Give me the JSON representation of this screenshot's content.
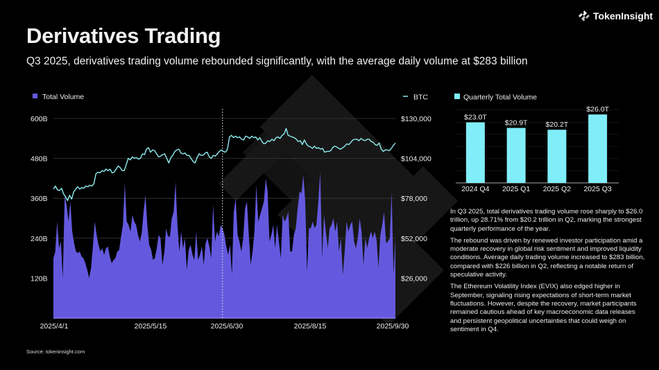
{
  "header": {
    "title": "Derivatives Trading",
    "subtitle": "Q3 2025, derivatives trading volume rebounded significantly, with the average daily volume at $283 billion",
    "logo_text": "TokenInsight"
  },
  "colors": {
    "volume": "#6459DE",
    "btc": "#8EEEF2",
    "quarterly": "#80EEF8",
    "grid": "#3a3a3a",
    "background": "#000000"
  },
  "chart_data": [
    {
      "type": "area",
      "title": "",
      "legend": [
        {
          "name": "Total Volume",
          "marker": "square",
          "position": "top-left"
        },
        {
          "name": "BTC",
          "marker": "line",
          "position": "top-right"
        }
      ],
      "x_tick_labels": [
        "2025/4/1",
        "2025/5/15",
        "2025/6/30",
        "2025/8/15",
        "2025/9/30"
      ],
      "x_range": [
        "2025/4/1",
        "2025/9/30"
      ],
      "marker_line": "2025/6/30",
      "y_left": {
        "label": "",
        "ticks": [
          "120B",
          "240B",
          "360B",
          "480B",
          "600B"
        ],
        "range": [
          0,
          600
        ]
      },
      "y_right": {
        "label": "",
        "ticks": [
          "$26,000",
          "$52,000",
          "$78,000",
          "$104,000",
          "$130,000"
        ],
        "range": [
          0,
          130000
        ]
      },
      "grid": true,
      "series": [
        {
          "name": "Total Volume",
          "axis": "left",
          "unit": "B",
          "values": [
            180,
            200,
            290,
            210,
            230,
            120,
            370,
            340,
            290,
            350,
            260,
            225,
            200,
            195,
            200,
            185,
            180,
            165,
            145,
            120,
            150,
            215,
            290,
            250,
            220,
            200,
            210,
            190,
            210,
            215,
            185,
            165,
            175,
            180,
            200,
            205,
            245,
            280,
            405,
            290,
            280,
            260,
            310,
            290,
            280,
            250,
            230,
            255,
            320,
            370,
            280,
            220,
            205,
            175,
            180,
            210,
            250,
            240,
            160,
            195,
            270,
            245,
            245,
            300,
            320,
            410,
            280,
            200,
            260,
            210,
            240,
            145,
            205,
            220,
            190,
            175,
            260,
            175,
            190,
            215,
            160,
            225,
            240,
            215,
            180,
            340,
            230,
            260,
            245,
            280,
            270,
            250,
            215,
            190,
            220,
            130,
            320,
            360,
            250,
            230,
            200,
            240,
            330,
            350,
            250,
            160,
            200,
            260,
            400,
            290,
            310,
            330,
            350,
            420,
            380,
            230,
            250,
            280,
            210,
            280,
            230,
            180,
            310,
            290,
            300,
            320,
            200,
            200,
            250,
            270,
            330,
            380,
            375,
            430,
            350,
            140,
            270,
            270,
            290,
            270,
            280,
            350,
            440,
            180,
            310,
            260,
            210,
            270,
            280,
            300,
            260,
            290,
            200,
            240,
            130,
            200,
            290,
            260,
            280,
            290,
            230,
            210,
            240,
            300,
            260,
            160,
            240,
            210,
            240,
            260,
            240,
            260,
            235,
            150,
            250,
            280,
            320,
            225,
            230,
            240,
            380,
            130,
            240
          ],
          "stats": {
            "average_daily_q3": "$283 billion",
            "average_daily_q2": "$226 billion"
          }
        },
        {
          "name": "BTC",
          "axis": "right",
          "unit": "USD",
          "values": [
            84000,
            86000,
            83500,
            83000,
            84500,
            81000,
            79000,
            76500,
            80000,
            77500,
            82000,
            84000,
            85500,
            84000,
            85000,
            84500,
            86000,
            85500,
            86500,
            86000,
            87500,
            94000,
            95000,
            94500,
            96000,
            95500,
            97000,
            96000,
            97000,
            94500,
            95000,
            97000,
            99000,
            98000,
            96000,
            96000,
            100000,
            104000,
            103000,
            105000,
            104000,
            104500,
            103500,
            104000,
            107000,
            106500,
            110000,
            111000,
            108000,
            109500,
            109000,
            107000,
            105000,
            105500,
            106500,
            107000,
            104000,
            101000,
            104500,
            106000,
            108500,
            109500,
            110000,
            107500,
            107000,
            107500,
            106000,
            106000,
            104000,
            102000,
            101000,
            104500,
            107000,
            106000,
            106000,
            107500,
            108000,
            105000,
            104000,
            106000,
            105500,
            107000,
            108500,
            109500,
            108500,
            108000,
            110000,
            118000,
            119000,
            117500,
            118500,
            117500,
            118000,
            116500,
            116000,
            118500,
            118000,
            117000,
            118500,
            117500,
            118000,
            116000,
            117500,
            115000,
            113500,
            114000,
            115500,
            115000,
            116500,
            115500,
            117500,
            118000,
            117000,
            119000,
            120000,
            123500,
            119000,
            118500,
            118000,
            117500,
            116500,
            115000,
            115500,
            113000,
            116000,
            113500,
            112000,
            111500,
            110500,
            112000,
            110500,
            111000,
            110000,
            110500,
            108000,
            108500,
            108500,
            109000,
            111000,
            112000,
            111500,
            110500,
            110000,
            111000,
            112000,
            113500,
            113000,
            114500,
            116000,
            116500,
            116500,
            115500,
            117000,
            116000,
            115500,
            116500,
            116500,
            115000,
            114500,
            113000,
            112500,
            114000,
            110000,
            108500,
            109500,
            109500,
            109000,
            110500,
            112500,
            114000
          ],
          "stats": {}
        }
      ]
    },
    {
      "type": "bar",
      "title": "",
      "legend": [
        {
          "name": "Quarterly Total Volume",
          "marker": "square",
          "position": "top-left"
        }
      ],
      "categories": [
        "2024 Q4",
        "2025 Q1",
        "2025 Q2",
        "2025 Q3"
      ],
      "values": [
        23.0,
        20.9,
        20.2,
        26.0
      ],
      "data_labels": [
        "$23.0T",
        "$20.9T",
        "$20.2T",
        "$26.0T"
      ],
      "unit": "T",
      "ylim": [
        0,
        30
      ],
      "grid": true
    }
  ],
  "description": {
    "paragraphs": [
      "In Q3 2025, total derivatives trading volume rose sharply to $26.0 trillion, up 28.71% from $20.2 trillion in Q2, marking the strongest quarterly performance of the year.",
      "The rebound was driven by renewed investor participation amid a moderate recovery in global risk sentiment and improved liquidity conditions. Average daily trading volume increased to $283 billion, compared with $226 billion in Q2, reflecting a notable return of speculative activity.",
      "The Ethereum Volatility Index (EVIX) also edged higher in September, signaling rising expectations of short-term market fluctuations. However, despite the recovery, market participants remained cautious ahead of key macroeconomic data releases and persistent geopolitical uncertainties that could weigh on sentiment in Q4."
    ]
  },
  "footer": {
    "source": "Source: tokeninsight.com"
  }
}
